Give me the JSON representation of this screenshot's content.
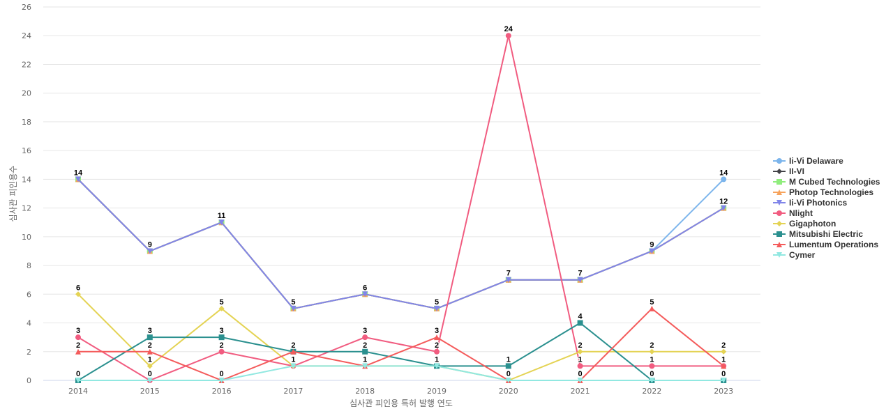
{
  "chart_data": {
    "type": "line",
    "title": "",
    "xlabel": "심사관 피인용 특허 발행 연도",
    "ylabel": "심사관 피인용수",
    "ylim": [
      0,
      26
    ],
    "yticks": [
      0,
      2,
      4,
      6,
      8,
      10,
      12,
      14,
      16,
      18,
      20,
      22,
      24,
      26
    ],
    "grid": true,
    "legend_position": "right",
    "categories": [
      "2014",
      "2015",
      "2016",
      "2017",
      "2018",
      "2019",
      "2020",
      "2021",
      "2022",
      "2023"
    ],
    "series": [
      {
        "name": "Ii-Vi Delaware",
        "color": "#7cb5ec",
        "marker": "circle",
        "values": [
          14,
          9,
          11,
          5,
          6,
          5,
          7,
          7,
          9,
          14
        ]
      },
      {
        "name": "II-VI",
        "color": "#434348",
        "marker": "diamond",
        "values": [
          14,
          9,
          11,
          5,
          6,
          5,
          7,
          7,
          9,
          12
        ]
      },
      {
        "name": "M Cubed Technologies",
        "color": "#90ed7d",
        "marker": "square",
        "values": [
          14,
          9,
          11,
          5,
          6,
          5,
          7,
          7,
          9,
          12
        ]
      },
      {
        "name": "Photop Technologies",
        "color": "#f7a35c",
        "marker": "triangle",
        "values": [
          14,
          9,
          11,
          5,
          6,
          5,
          7,
          7,
          9,
          12
        ]
      },
      {
        "name": "Ii-Vi Photonics",
        "color": "#8085e9",
        "marker": "triangle-down",
        "values": [
          14,
          9,
          11,
          5,
          6,
          5,
          7,
          7,
          9,
          12
        ]
      },
      {
        "name": "Nlight",
        "color": "#f15c80",
        "marker": "circle",
        "values": [
          3,
          0,
          2,
          1,
          3,
          2,
          24,
          1,
          1,
          1
        ]
      },
      {
        "name": "Gigaphoton",
        "color": "#e4d354",
        "marker": "diamond",
        "values": [
          6,
          1,
          5,
          1,
          1,
          1,
          0,
          2,
          2,
          2
        ]
      },
      {
        "name": "Mitsubishi Electric",
        "color": "#2b908f",
        "marker": "square",
        "values": [
          0,
          3,
          3,
          2,
          2,
          1,
          1,
          4,
          0,
          0
        ]
      },
      {
        "name": "Lumentum Operations",
        "color": "#f45b5b",
        "marker": "triangle",
        "values": [
          2,
          2,
          0,
          2,
          1,
          3,
          0,
          0,
          5,
          1
        ]
      },
      {
        "name": "Cymer",
        "color": "#91e8e1",
        "marker": "triangle-down",
        "values": [
          0,
          0,
          0,
          1,
          1,
          1,
          0,
          0,
          0,
          0
        ]
      }
    ]
  },
  "data_labels": [
    {
      "x": "2014",
      "values": [
        14,
        6,
        3,
        2,
        0
      ]
    },
    {
      "x": "2015",
      "values": [
        9,
        3,
        2,
        1,
        0
      ]
    },
    {
      "x": "2016",
      "values": [
        11,
        5,
        3,
        2,
        0
      ]
    },
    {
      "x": "2017",
      "values": [
        5,
        2,
        1
      ]
    },
    {
      "x": "2018",
      "values": [
        6,
        3,
        2,
        1
      ]
    },
    {
      "x": "2019",
      "values": [
        5,
        3,
        2,
        1
      ]
    },
    {
      "x": "2020",
      "values": [
        24,
        7,
        1,
        0
      ]
    },
    {
      "x": "2021",
      "values": [
        7,
        4,
        2,
        1,
        0
      ]
    },
    {
      "x": "2022",
      "values": [
        9,
        5,
        2,
        1,
        0
      ]
    },
    {
      "x": "2023",
      "values": [
        14,
        12,
        2,
        1,
        0
      ]
    }
  ]
}
